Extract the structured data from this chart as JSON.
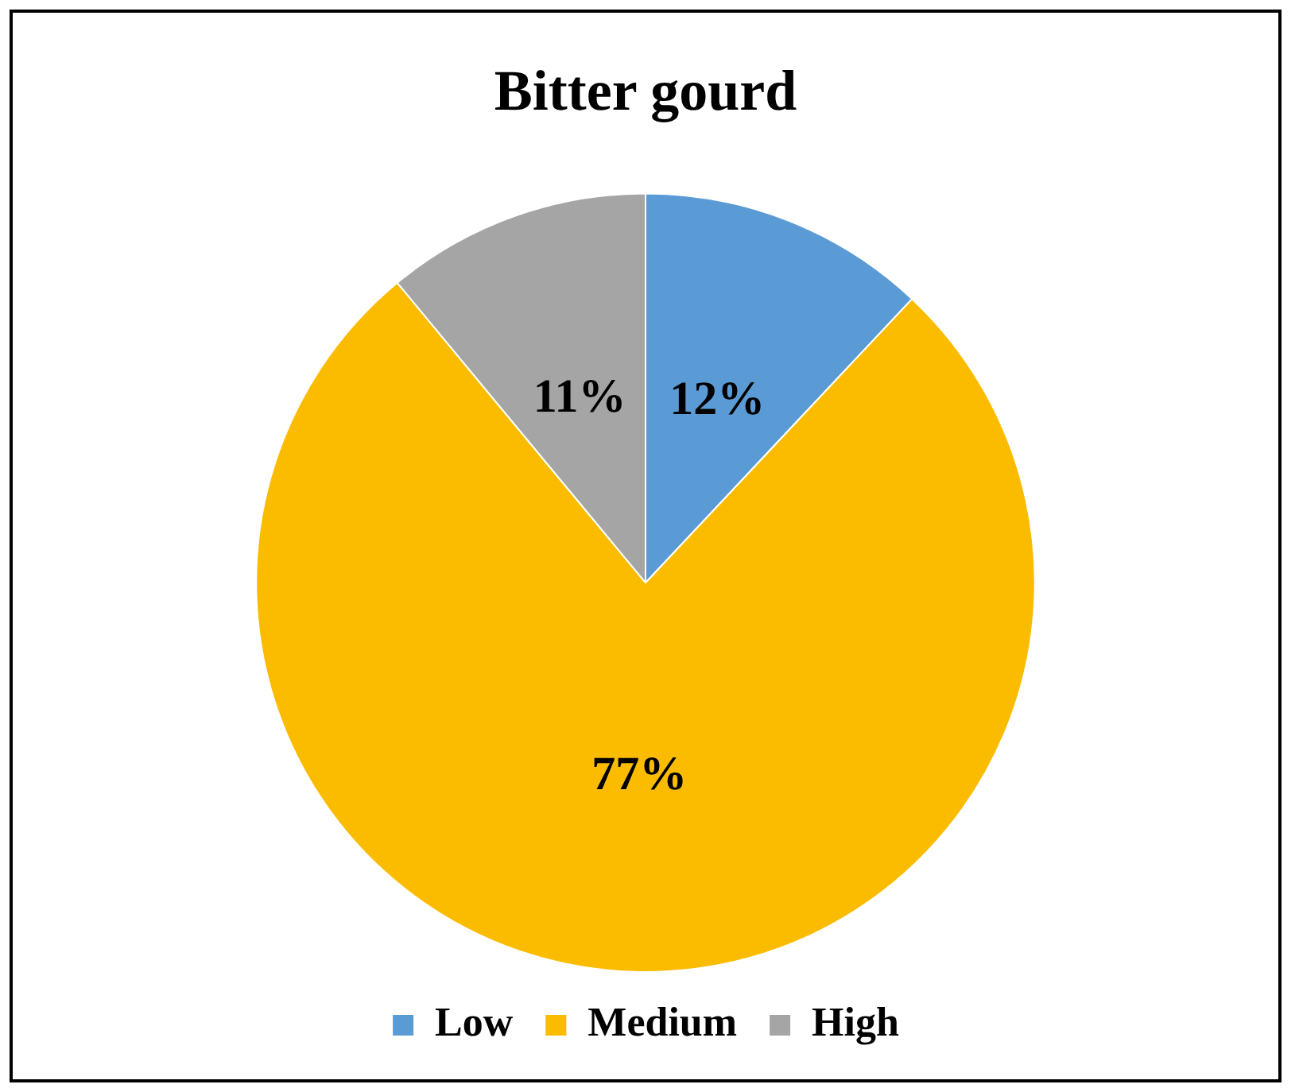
{
  "chart_data": {
    "type": "pie",
    "title": "Bitter gourd",
    "categories": [
      "Low",
      "Medium",
      "High"
    ],
    "values": [
      12,
      77,
      11
    ],
    "value_labels": [
      "12%",
      "77%",
      "11%"
    ],
    "colors": [
      "#5b9bd5",
      "#fbbc00",
      "#a5a5a5"
    ],
    "legend": "bottom"
  }
}
